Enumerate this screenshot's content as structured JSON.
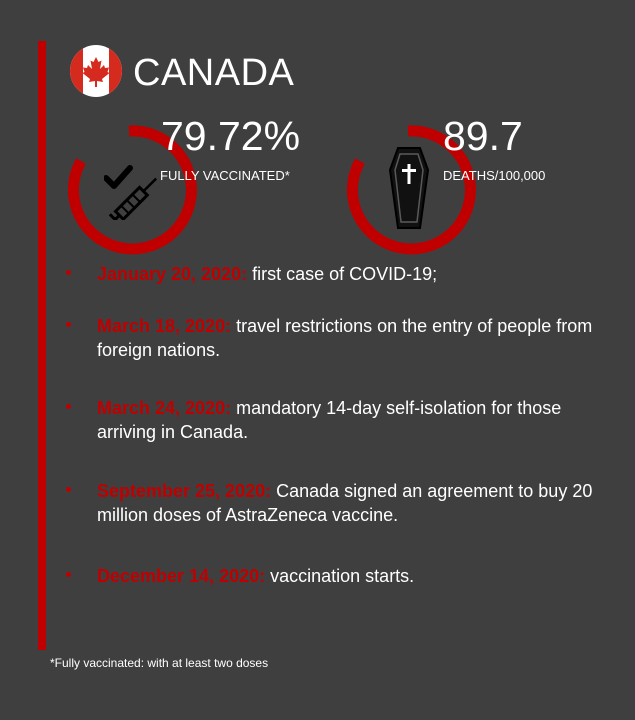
{
  "header": {
    "country": "CANADA",
    "flag_icon": "canada-flag-icon"
  },
  "stats": [
    {
      "value": "79.72%",
      "label": "FULLY VACCINATED*",
      "icon": "syringe-check-icon",
      "ring_fraction": 0.7972
    },
    {
      "value": "89.7",
      "label": "DEATHS/100,000",
      "icon": "coffin-icon",
      "ring_fraction": 0.7
    }
  ],
  "timeline": [
    {
      "date": "January 20, 2020:",
      "text": "first case of COVID-19;"
    },
    {
      "date": "March 18, 2020:",
      "text": "travel restrictions on the entry of people from foreign nations."
    },
    {
      "date": "March 24, 2020:",
      "text": "mandatory 14-day self-isolation for those arriving in Canada."
    },
    {
      "date": "September 25, 2020:",
      "text": "Canada signed an agreement to buy 20 million doses of AstraZeneca vaccine."
    },
    {
      "date": "December 14, 2020:",
      "text": "vaccination starts."
    }
  ],
  "footnote": "*Fully vaccinated: with at least two doses",
  "colors": {
    "accent": "#c00000",
    "background": "#3f3f3f",
    "text": "#ffffff"
  }
}
